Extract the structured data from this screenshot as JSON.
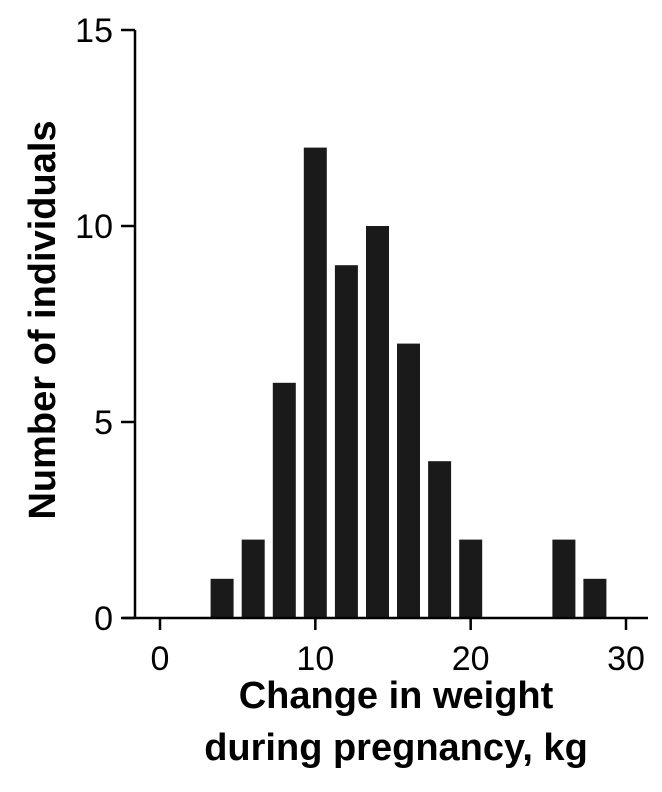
{
  "chart_data": {
    "type": "bar",
    "subtype": "histogram",
    "xlabel_lines": [
      "Change in weight",
      "during pregnancy, kg"
    ],
    "ylabel": "Number of individuals",
    "x_ticks": [
      0,
      10,
      20,
      30
    ],
    "y_ticks": [
      0,
      5,
      10,
      15
    ],
    "xlim": [
      -2,
      31.5
    ],
    "ylim": [
      0,
      15
    ],
    "bin_width": 2,
    "bins": [
      {
        "center": 4,
        "value": 1
      },
      {
        "center": 6,
        "value": 2
      },
      {
        "center": 8,
        "value": 6
      },
      {
        "center": 10,
        "value": 12
      },
      {
        "center": 12,
        "value": 9
      },
      {
        "center": 14,
        "value": 10
      },
      {
        "center": 16,
        "value": 7
      },
      {
        "center": 18,
        "value": 4
      },
      {
        "center": 20,
        "value": 2
      },
      {
        "center": 26,
        "value": 2
      },
      {
        "center": 28,
        "value": 1
      }
    ],
    "bar_color": "#1a1a1a",
    "grid": false,
    "legend": "none"
  }
}
